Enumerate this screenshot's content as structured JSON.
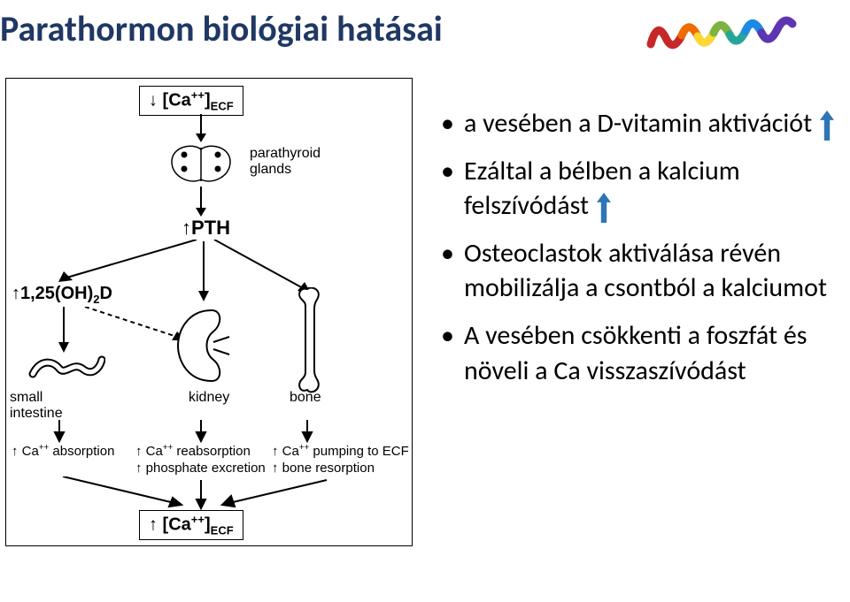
{
  "title": "Parathormon biológiai hatásai",
  "bullets": [
    {
      "text_pre": "a vesében a D-vitamin aktivációt",
      "arrow": true
    },
    {
      "text_pre": "Ezáltal a bélben a kalcium felszívódást",
      "arrow": true
    },
    {
      "text_pre": "Osteoclastok aktiválása révén mobilizálja a csontból a kalciumot",
      "arrow": false
    },
    {
      "text_pre": "A vesében csökkenti a foszfát és növeli a Ca visszaszívódást",
      "arrow": false
    }
  ],
  "arrow_color": "#2e75b6",
  "arrow_w": 16,
  "arrow_h": 34,
  "diagram": {
    "top_box_html": "↓ [Ca<span class='sup'>++</span>]<span class='sub'>ECF</span>",
    "bottom_box_html": "↑ [Ca<span class='sup'>++</span>]<span class='sub'>ECF</span>",
    "parathyroid_label": "parathyroid\nglands",
    "pth_label": "↑PTH",
    "vitd_label_html": "↑1,25(OH)<span class='sub'>2</span>D",
    "intestine_label": "small\nintestine",
    "kidney_label": "kidney",
    "bone_label": "bone",
    "ca_absorption": "↑ Ca++ absorption",
    "ca_reabs": "↑ Ca++ reabsorption",
    "phos_excr": "↑ phosphate excretion",
    "ca_pump": "↑ Ca++ pumping to ECF",
    "bone_resorp": "↑ bone resorption"
  },
  "protein_colors": [
    "#c62828",
    "#ef6c00",
    "#fdd835",
    "#7cb342",
    "#26a69a",
    "#1e88e5",
    "#5e35b1",
    "#d81b60"
  ]
}
